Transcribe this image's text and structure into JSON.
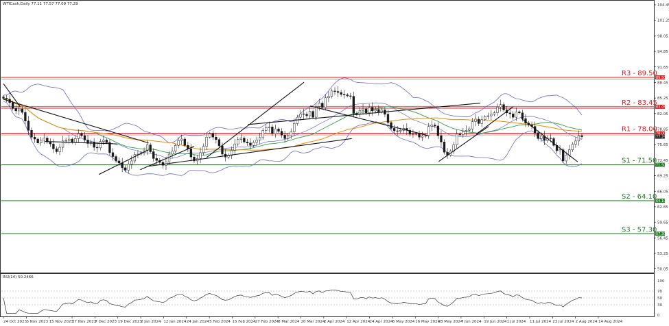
{
  "header": {
    "symbol_line": "WTICash,Daily  77.11 77.57 77.09 77.29",
    "rsi_label": "RSI(14) 50.2466"
  },
  "colors": {
    "resistance": "#e31a1c",
    "support": "#1f7a1f",
    "bollinger": "#6a6ac8",
    "ma_green": "#2ea043",
    "ma_orange": "#f08a00",
    "trendline": "#111111",
    "candle": "#1a1a1a"
  },
  "chart_data": {
    "type": "candlestick",
    "ylim": [
      49.3,
      105.3
    ],
    "price_ticks": [
      "104.45",
      "101.25",
      "98.05",
      "94.85",
      "91.65",
      "88.45",
      "85.25",
      "82.05",
      "78.85",
      "75.65",
      "72.45",
      "69.25",
      "66.05",
      "62.85",
      "59.65",
      "56.45",
      "53.25",
      "50.05"
    ],
    "date_labels": [
      "24 Oct 2023",
      "3 Nov 2023",
      "15 Nov 2023",
      "27 Nov 2023",
      "7 Dec 2023",
      "19 Dec 2023",
      "2 Jan 2024",
      "12 Jan 2024",
      "24 Jan 2024",
      "5 Feb 2024",
      "15 Feb 2024",
      "27 Feb 2024",
      "8 Mar 2024",
      "20 Mar 2024",
      "2 Apr 2024",
      "12 Apr 2024",
      "24 Apr 2024",
      "6 May 2024",
      "16 May 2024",
      "28 May 2024",
      "7 Jun 2024",
      "19 Jun 2024",
      "1 Jul 2024",
      "11 Jul 2024",
      "23 Jul 2024",
      "2 Aug 2024",
      "14 Aug 2024"
    ],
    "levels": [
      {
        "label": "R3 - 89.50",
        "tag": "89.50",
        "value": 89.5,
        "kind": "resistance"
      },
      {
        "label": "R2 - 83.45",
        "tag": "83.45",
        "value": 83.45,
        "kind": "resistance"
      },
      {
        "label": "R1 - 78.00",
        "tag": "78.00",
        "value": 78.0,
        "kind": "resistance"
      },
      {
        "label": "S1 - 71.50",
        "tag": "71.50",
        "value": 71.5,
        "kind": "support"
      },
      {
        "label": "S2 - 64.10",
        "tag": "64.10",
        "value": 64.1,
        "kind": "support"
      },
      {
        "label": "S3 - 57.30",
        "tag": "57.30",
        "value": 57.3,
        "kind": "support"
      }
    ],
    "last_price_tag": "77.29",
    "last_price": 77.29,
    "close": [
      85.2,
      85.0,
      84.3,
      83.1,
      82.6,
      83.0,
      82.3,
      80.5,
      78.6,
      77.2,
      76.8,
      76.0,
      76.6,
      77.0,
      76.2,
      75.8,
      74.8,
      74.2,
      75.1,
      76.4,
      76.5,
      76.8,
      76.1,
      76.9,
      77.9,
      77.5,
      76.6,
      75.9,
      76.2,
      75.1,
      75.0,
      76.3,
      76.6,
      76.1,
      74.0,
      73.2,
      72.3,
      71.9,
      70.9,
      70.4,
      71.6,
      72.3,
      73.6,
      73.7,
      74.0,
      74.4,
      75.6,
      74.2,
      72.8,
      72.4,
      72.0,
      71.4,
      72.1,
      73.7,
      74.3,
      75.5,
      76.5,
      76.8,
      75.5,
      74.8,
      73.1,
      72.3,
      72.8,
      74.0,
      75.3,
      77.2,
      77.9,
      77.2,
      76.7,
      75.4,
      73.7,
      73.1,
      73.4,
      74.5,
      75.8,
      76.7,
      77.0,
      76.2,
      76.0,
      75.5,
      76.1,
      76.6,
      77.1,
      78.6,
      79.1,
      79.3,
      77.9,
      78.9,
      78.4,
      77.6,
      76.9,
      77.5,
      78.3,
      80.0,
      81.3,
      82.0,
      81.9,
      81.6,
      82.5,
      81.3,
      83.5,
      84.2,
      83.3,
      85.3,
      85.6,
      86.7,
      86.6,
      86.4,
      86.0,
      85.9,
      85.7,
      85.6,
      82.1,
      81.9,
      82.7,
      83.0,
      82.2,
      83.3,
      82.6,
      82.9,
      82.4,
      82.8,
      81.9,
      80.2,
      79.0,
      78.5,
      78.4,
      78.6,
      79.0,
      78.6,
      77.8,
      77.9,
      77.9,
      77.2,
      77.4,
      77.5,
      79.4,
      79.7,
      79.5,
      77.5,
      76.2,
      74.1,
      73.5,
      74.3,
      75.6,
      77.8,
      77.7,
      78.4,
      78.6,
      78.9,
      80.4,
      80.9,
      80.0,
      80.8,
      81.4,
      81.6,
      81.9,
      82.2,
      83.4,
      83.9,
      82.8,
      82.2,
      82.0,
      81.3,
      82.4,
      82.2,
      81.0,
      80.1,
      79.7,
      79.4,
      78.1,
      76.9,
      77.4,
      76.5,
      77.0,
      76.9,
      75.5,
      74.4,
      74.6,
      72.3,
      73.5,
      74.6,
      75.7,
      76.4,
      77.5,
      77.29
    ],
    "rsi_ylim": [
      0,
      100
    ],
    "rsi_levels": [
      70,
      50,
      30
    ],
    "rsi_tick_labels": [
      "100",
      "70",
      "50",
      "30",
      "0"
    ],
    "trendlines_note": ""
  }
}
